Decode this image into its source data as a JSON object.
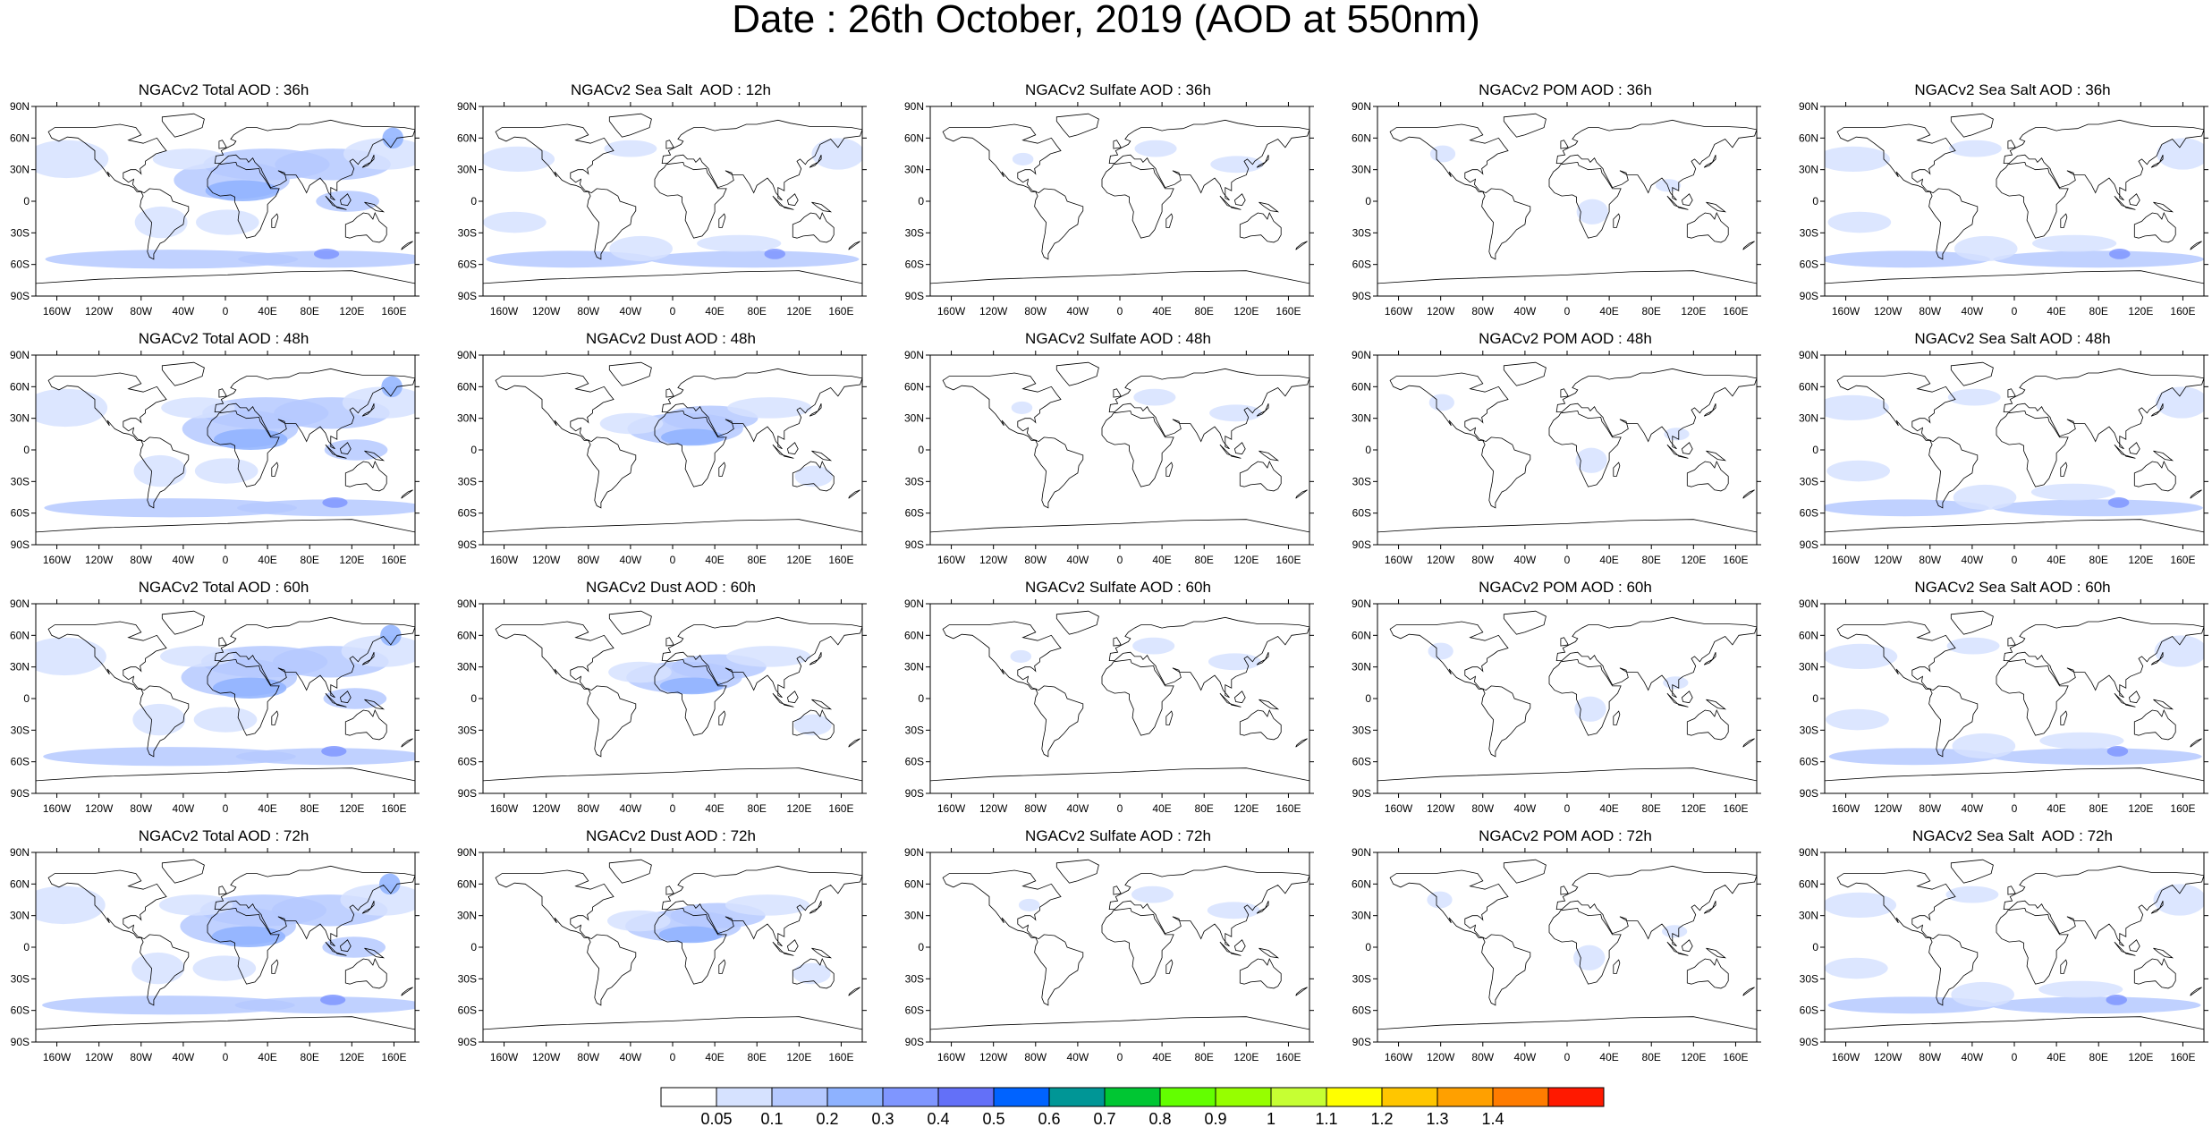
{
  "title": "Date : 26th October, 2019 (AOD at 550nm)",
  "lat_ticks": [
    "90N",
    "60N",
    "30N",
    "0",
    "30S",
    "60S",
    "90S"
  ],
  "lon_ticks": [
    "160W",
    "120W",
    "80W",
    "40W",
    "0",
    "40E",
    "80E",
    "120E",
    "160E"
  ],
  "panels": [
    [
      "NGACv2 Total AOD : 36h",
      "NGACv2 Sea Salt  AOD : 12h",
      "NGACv2 Sulfate AOD : 36h",
      "NGACv2 POM AOD : 36h",
      "NGACv2 Sea Salt AOD : 36h"
    ],
    [
      "NGACv2 Total AOD : 48h",
      "NGACv2 Dust AOD : 48h",
      "NGACv2 Sulfate AOD : 48h",
      "NGACv2 POM AOD : 48h",
      "NGACv2 Sea Salt AOD : 48h"
    ],
    [
      "NGACv2 Total AOD : 60h",
      "NGACv2 Dust AOD : 60h",
      "NGACv2 Sulfate AOD : 60h",
      "NGACv2 POM AOD : 60h",
      "NGACv2 Sea Salt AOD : 60h"
    ],
    [
      "NGACv2 Total AOD : 72h",
      "NGACv2 Dust AOD : 72h",
      "NGACv2 Sulfate AOD : 72h",
      "NGACv2 POM AOD : 72h",
      "NGACv2 Sea Salt  AOD : 72h"
    ]
  ],
  "colorbar": {
    "labels": [
      "0.05",
      "0.1",
      "0.2",
      "0.3",
      "0.4",
      "0.5",
      "0.6",
      "0.7",
      "0.8",
      "0.9",
      "1",
      "1.1",
      "1.2",
      "1.3",
      "1.4"
    ],
    "colors": [
      "#ffffff",
      "#d6e2ff",
      "#b5c9ff",
      "#8eb2ff",
      "#7f96ff",
      "#6370f8",
      "#0063ff",
      "#009696",
      "#00c633",
      "#63ff00",
      "#96ff00",
      "#c6ff33",
      "#ffff00",
      "#ffc600",
      "#ffa000",
      "#ff7c00",
      "#ff1900"
    ]
  }
}
